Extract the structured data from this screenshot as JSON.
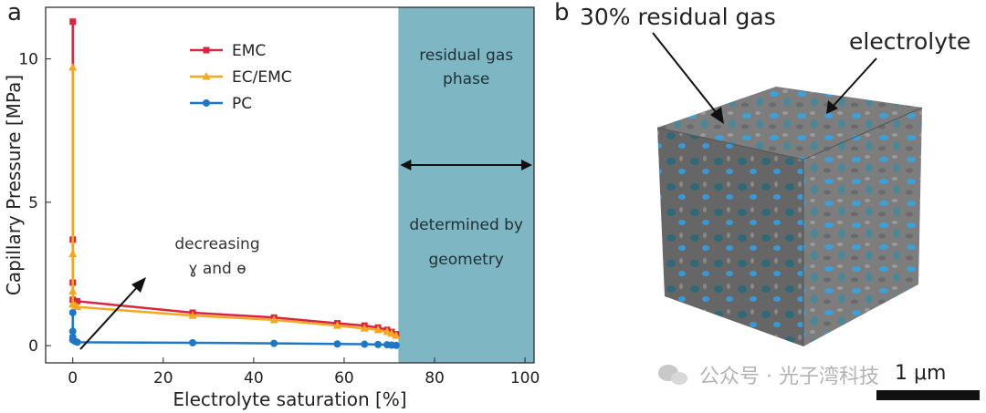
{
  "panel_a_label": "a",
  "panel_b_label": "b",
  "chart_data": {
    "type": "line",
    "xlabel": "Electrolyte saturation [%]",
    "ylabel": "Capillary Pressure [MPa]",
    "xlim": [
      -6,
      102
    ],
    "ylim": [
      -0.6,
      11.8
    ],
    "xticks": [
      0,
      20,
      40,
      60,
      80,
      100
    ],
    "yticks": [
      0,
      5,
      10
    ],
    "legend_position": "top-center",
    "series": [
      {
        "name": "EMC",
        "color": "#d7263d",
        "marker": "square",
        "x": [
          0,
          0,
          0,
          0,
          0.5,
          1,
          26.5,
          44.5,
          58.5,
          64.5,
          67.5,
          69.5,
          70.5,
          71.5
        ],
        "y": [
          11.3,
          3.7,
          2.2,
          1.6,
          1.55,
          1.55,
          1.15,
          0.98,
          0.78,
          0.7,
          0.63,
          0.55,
          0.48,
          0.4
        ]
      },
      {
        "name": "EC/EMC",
        "color": "#f5a623",
        "marker": "triangle",
        "x": [
          0,
          0,
          0,
          0,
          0.5,
          1,
          26.5,
          44.5,
          58.5,
          64.5,
          67.5,
          69.5,
          70.5,
          71.5
        ],
        "y": [
          9.7,
          3.2,
          1.9,
          1.45,
          1.4,
          1.35,
          1.05,
          0.9,
          0.7,
          0.6,
          0.55,
          0.48,
          0.42,
          0.35
        ]
      },
      {
        "name": "PC",
        "color": "#1f77c4",
        "marker": "circle",
        "x": [
          0,
          0,
          0,
          0,
          0.5,
          1,
          26.5,
          44.5,
          58.5,
          64.5,
          67.5,
          69.5,
          70.5,
          71.5
        ],
        "y": [
          1.15,
          0.5,
          0.3,
          0.2,
          0.15,
          0.12,
          0.1,
          0.08,
          0.06,
          0.05,
          0.04,
          0.03,
          0.02,
          0.01
        ]
      }
    ],
    "shaded_region": {
      "x_start": 72,
      "x_end": 102,
      "color": "#7eb6c4",
      "label_top": [
        "residual gas",
        "phase"
      ],
      "label_bottom": [
        "determined by",
        "geometry"
      ]
    },
    "annotation": [
      "decreasing",
      "ɣ and ɵ"
    ]
  },
  "image_b": {
    "callout_gas": "30% residual gas",
    "callout_electrolyte": "electrolyte",
    "scale_bar": "1 μm",
    "watermark": "公众号 · 光子湾科技"
  }
}
